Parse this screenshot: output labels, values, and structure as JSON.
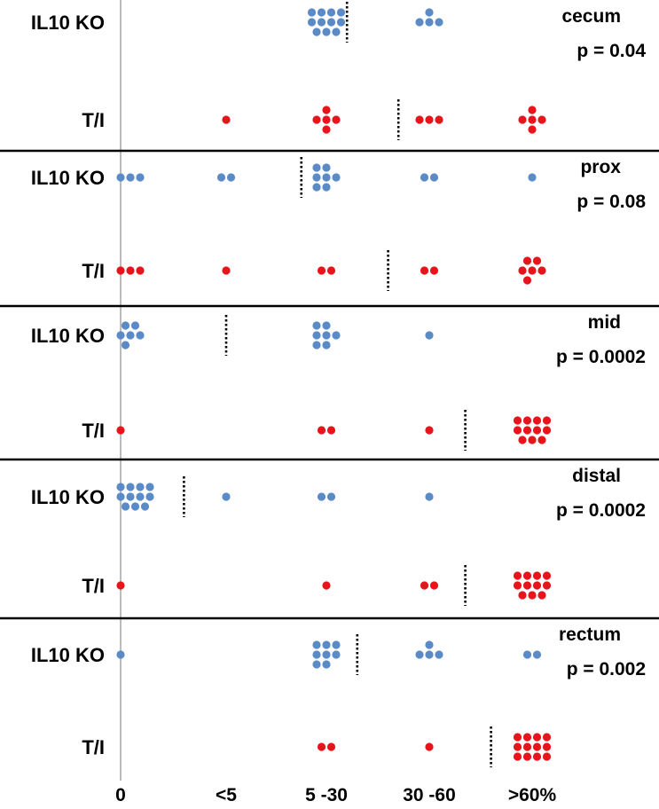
{
  "colors": {
    "il10ko": "#5b8bc6",
    "ti": "#e8141b",
    "axis": "#a0a0a0",
    "divider": "#000000",
    "median": "#000000",
    "text": "#000000"
  },
  "chart_data": {
    "type": "scatter",
    "title": "",
    "xlabel": "",
    "ylabel": "",
    "categories": [
      "0",
      "<5",
      "5 -30",
      "30 -60",
      ">60%"
    ],
    "panels": [
      {
        "name": "cecum",
        "p_value": "p = 0.04",
        "rows": [
          {
            "group": "IL10 KO",
            "counts": [
              0,
              0,
              11,
              4,
              0
            ],
            "median": 2.2
          },
          {
            "group": "T/I",
            "counts": [
              0,
              1,
              5,
              3,
              5
            ],
            "median": 2.7
          }
        ]
      },
      {
        "name": "prox",
        "p_value": "p = 0.08",
        "rows": [
          {
            "group": "IL10 KO",
            "counts": [
              3,
              2,
              7,
              2,
              1
            ],
            "median": 1.75
          },
          {
            "group": "T/I",
            "counts": [
              3,
              1,
              2,
              2,
              6
            ],
            "median": 2.6
          }
        ]
      },
      {
        "name": "mid",
        "p_value": "p = 0.0002",
        "rows": [
          {
            "group": "IL10 KO",
            "counts": [
              6,
              0,
              7,
              1,
              0
            ],
            "median": 1.0
          },
          {
            "group": "T/I",
            "counts": [
              1,
              0,
              2,
              1,
              11
            ],
            "median": 3.35
          }
        ]
      },
      {
        "name": "distal",
        "p_value": "p = 0.0002",
        "rows": [
          {
            "group": "IL10 KO",
            "counts": [
              11,
              1,
              2,
              1,
              0
            ],
            "median": 0.6
          },
          {
            "group": "T/I",
            "counts": [
              1,
              0,
              1,
              2,
              11
            ],
            "median": 3.35
          }
        ]
      },
      {
        "name": "rectum",
        "p_value": "p = 0.002",
        "rows": [
          {
            "group": "IL10 KO",
            "counts": [
              1,
              0,
              8,
              4,
              2
            ],
            "median": 2.3
          },
          {
            "group": "T/I",
            "counts": [
              0,
              0,
              2,
              1,
              12
            ],
            "median": 3.6
          }
        ]
      }
    ]
  }
}
